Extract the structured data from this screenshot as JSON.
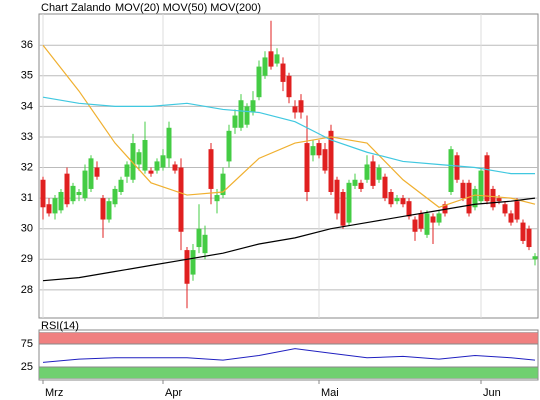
{
  "chart_data": [
    {
      "type": "candlestick",
      "title": "Chart Zalando",
      "categories": [
        "Mrz",
        null,
        null,
        null,
        null,
        null,
        null,
        null,
        null,
        null,
        null,
        null,
        null,
        null,
        null,
        null,
        null,
        null,
        null,
        null,
        "Apr",
        null,
        null,
        null,
        null,
        null,
        null,
        null,
        null,
        null,
        null,
        null,
        null,
        null,
        null,
        null,
        null,
        null,
        null,
        null,
        null,
        null,
        null,
        null,
        null,
        null,
        "Mai",
        null,
        null,
        null,
        null,
        null,
        null,
        null,
        null,
        null,
        null,
        null,
        null,
        null,
        null,
        null,
        null,
        null,
        null,
        null,
        null,
        null,
        null,
        null,
        null,
        null,
        null,
        "Jun",
        null,
        null,
        null,
        null,
        null,
        null,
        null,
        null,
        null
      ],
      "open": [
        31.6,
        30.8,
        30.5,
        30.6,
        31.8,
        30.9,
        31.1,
        31.0,
        31.3,
        32.0,
        31.0,
        30.3,
        30.8,
        31.2,
        31.7,
        31.6,
        32.1,
        31.9,
        31.9,
        31.9,
        32.0,
        32.3,
        32.1,
        32.0,
        29.3,
        28.5,
        29.4,
        29.2,
        32.6,
        30.9,
        31.1,
        32.2,
        33.3,
        33.3,
        33.4,
        33.8,
        34.3,
        35.0,
        35.8,
        35.4,
        35.4,
        35.0,
        34.0,
        34.2,
        32.8,
        32.4,
        32.8,
        32.6,
        33.2,
        31.6,
        31.2,
        30.2,
        31.4,
        31.5,
        31.6,
        32.2,
        31.6,
        31.7,
        31.2,
        30.9,
        31.0,
        30.9,
        30.3,
        30.5,
        29.8,
        30.4,
        30.2,
        30.8,
        31.2,
        32.4,
        31.5,
        31.5,
        30.7,
        30.9,
        32.4,
        31.3,
        31.0,
        30.8,
        30.5,
        30.9,
        30.2,
        30.0,
        29.0
      ],
      "high": [
        31.7,
        31.0,
        31.1,
        31.3,
        32.0,
        31.5,
        31.3,
        32.1,
        32.4,
        32.2,
        31.1,
        31.0,
        31.4,
        31.7,
        32.2,
        33.1,
        32.6,
        33.5,
        32.0,
        32.3,
        32.6,
        33.5,
        32.2,
        32.3,
        29.4,
        29.5,
        30.8,
        30.1,
        32.8,
        31.3,
        32.0,
        33.4,
        33.9,
        34.4,
        34.1,
        34.5,
        35.5,
        35.8,
        36.8,
        35.9,
        35.6,
        35.1,
        34.2,
        34.4,
        33.7,
        32.9,
        32.9,
        32.8,
        33.4,
        31.7,
        31.3,
        31.6,
        31.8,
        31.6,
        32.4,
        32.4,
        32.1,
        31.8,
        31.3,
        31.1,
        31.1,
        31.0,
        30.4,
        30.6,
        30.6,
        30.5,
        30.6,
        30.9,
        32.7,
        32.5,
        31.6,
        31.6,
        31.4,
        32.0,
        32.5,
        31.4,
        31.1,
        30.9,
        30.6,
        31.0,
        30.3,
        30.1,
        29.2
      ],
      "low": [
        30.3,
        30.4,
        30.3,
        30.5,
        30.7,
        30.8,
        30.9,
        30.9,
        31.2,
        31.6,
        29.7,
        30.2,
        30.7,
        31.1,
        31.5,
        31.5,
        31.9,
        31.8,
        31.7,
        31.8,
        31.9,
        32.0,
        31.8,
        29.3,
        27.4,
        28.3,
        29.2,
        29.0,
        30.8,
        30.5,
        31.0,
        32.0,
        33.1,
        33.2,
        33.3,
        33.7,
        34.2,
        34.9,
        35.2,
        35.3,
        34.5,
        34.1,
        33.6,
        33.6,
        30.9,
        32.2,
        32.3,
        31.8,
        31.1,
        30.3,
        30.0,
        30.1,
        31.3,
        31.2,
        31.5,
        31.3,
        31.5,
        30.9,
        30.7,
        30.8,
        30.7,
        30.3,
        29.6,
        29.9,
        29.7,
        29.5,
        30.1,
        30.4,
        31.1,
        31.5,
        30.9,
        30.4,
        30.6,
        30.8,
        30.8,
        30.6,
        30.8,
        30.4,
        30.1,
        30.2,
        29.5,
        29.3,
        28.8
      ],
      "close": [
        30.7,
        30.5,
        31.0,
        31.2,
        30.8,
        31.4,
        31.2,
        31.9,
        32.3,
        31.7,
        30.3,
        30.9,
        31.3,
        31.6,
        32.1,
        32.8,
        32.5,
        32.9,
        31.8,
        32.2,
        32.4,
        33.3,
        31.9,
        29.9,
        28.2,
        29.3,
        30.0,
        29.8,
        31.3,
        31.1,
        31.8,
        33.2,
        33.7,
        34.2,
        34.0,
        34.2,
        35.3,
        35.6,
        35.3,
        35.7,
        34.8,
        34.3,
        33.8,
        33.8,
        31.2,
        32.7,
        32.4,
        31.9,
        31.2,
        30.5,
        30.1,
        31.5,
        31.6,
        31.3,
        32.1,
        31.4,
        32.0,
        31.0,
        30.8,
        31.0,
        30.8,
        30.4,
        29.9,
        30.0,
        30.5,
        30.2,
        30.5,
        30.5,
        32.6,
        31.6,
        31.0,
        30.5,
        31.3,
        31.9,
        30.9,
        30.7,
        30.9,
        30.5,
        30.2,
        30.3,
        29.6,
        29.4,
        29.1
      ],
      "up_color": "#44cc44",
      "down_color": "#e02020",
      "lines": [
        {
          "name": "MOV(20)",
          "color": "#f0b030",
          "x": [
            0,
            6,
            12,
            18,
            24,
            30,
            36,
            42,
            48,
            54,
            60,
            66,
            72,
            78,
            82
          ],
          "values": [
            36.0,
            34.5,
            32.8,
            31.5,
            31.1,
            31.2,
            32.3,
            32.8,
            33.0,
            32.8,
            31.6,
            30.7,
            31.1,
            31.0,
            30.8
          ]
        },
        {
          "name": "MOV(50)",
          "color": "#40c8e0",
          "x": [
            0,
            6,
            12,
            18,
            24,
            30,
            36,
            42,
            48,
            54,
            60,
            66,
            72,
            78,
            82
          ],
          "values": [
            34.3,
            34.1,
            34.0,
            34.0,
            34.1,
            33.9,
            33.8,
            33.5,
            32.9,
            32.5,
            32.2,
            32.1,
            32.0,
            31.8,
            31.8
          ]
        },
        {
          "name": "MOV(200)",
          "color": "#000000",
          "x": [
            0,
            6,
            12,
            18,
            24,
            30,
            36,
            42,
            48,
            54,
            60,
            66,
            72,
            78,
            82
          ],
          "values": [
            28.3,
            28.4,
            28.6,
            28.8,
            29.0,
            29.2,
            29.5,
            29.7,
            30.0,
            30.2,
            30.4,
            30.6,
            30.8,
            30.9,
            31.0
          ]
        }
      ],
      "ylim": [
        27.08,
        37.02
      ],
      "yticks": [
        28,
        29,
        30,
        31,
        32,
        33,
        34,
        35,
        36
      ],
      "grid": true
    },
    {
      "type": "line",
      "title": "RSI(14)",
      "x": [
        0,
        6,
        12,
        18,
        24,
        30,
        36,
        42,
        48,
        54,
        60,
        66,
        72,
        78,
        82
      ],
      "series": [
        {
          "name": "RSI(14)",
          "color": "#2020c0",
          "values": [
            35,
            42,
            45,
            45,
            45,
            40,
            50,
            65,
            55,
            45,
            48,
            42,
            50,
            45,
            40
          ]
        }
      ],
      "bands": [
        {
          "range": [
            75,
            100
          ],
          "color": "#f08080"
        },
        {
          "range": [
            0,
            25
          ],
          "color": "#70d070"
        }
      ],
      "ylim": [
        0,
        100
      ],
      "yticks": [
        25,
        75
      ]
    }
  ]
}
